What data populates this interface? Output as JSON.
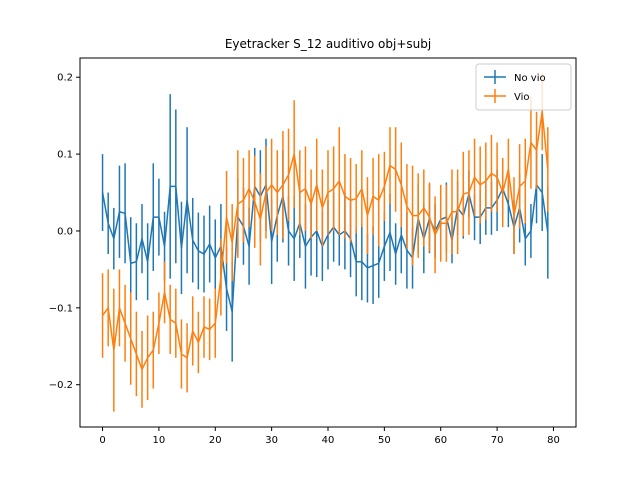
{
  "chart_data": {
    "type": "line",
    "title": "Eyetracker S_12 auditivo obj+subj",
    "xlabel": "",
    "ylabel": "",
    "xlim": [
      -4,
      84
    ],
    "ylim": [
      -0.255,
      0.225
    ],
    "xticks": [
      0,
      10,
      20,
      30,
      40,
      50,
      60,
      70,
      80
    ],
    "yticks": [
      -0.2,
      -0.1,
      0.0,
      0.1,
      0.2
    ],
    "ytick_labels": [
      "−0.2",
      "−0.1",
      "0.0",
      "0.1",
      "0.2"
    ],
    "grid": false,
    "legend_position": "top-right",
    "errorbars": true,
    "series": [
      {
        "name": "No vio",
        "color": "#1f77b4",
        "x": [
          0,
          1,
          2,
          3,
          4,
          5,
          6,
          7,
          8,
          9,
          10,
          11,
          12,
          13,
          14,
          15,
          16,
          17,
          18,
          19,
          20,
          21,
          22,
          23,
          24,
          25,
          26,
          27,
          28,
          29,
          30,
          31,
          32,
          33,
          34,
          35,
          36,
          37,
          38,
          39,
          40,
          41,
          42,
          43,
          44,
          45,
          46,
          47,
          48,
          49,
          50,
          51,
          52,
          53,
          54,
          55,
          56,
          57,
          58,
          59,
          60,
          61,
          62,
          63,
          64,
          65,
          66,
          67,
          68,
          69,
          70,
          71,
          72,
          73,
          74,
          75,
          76,
          77,
          78,
          79
        ],
        "y": [
          0.05,
          0.01,
          -0.01,
          0.025,
          0.023,
          -0.042,
          -0.04,
          -0.01,
          -0.04,
          0.018,
          0.018,
          -0.02,
          0.058,
          0.058,
          -0.022,
          0.04,
          -0.012,
          -0.026,
          -0.03,
          -0.017,
          -0.035,
          -0.02,
          -0.075,
          -0.105,
          0.018,
          0.006,
          -0.02,
          0.058,
          0.045,
          0.06,
          -0.014,
          0.02,
          0.045,
          0.0,
          -0.01,
          0.01,
          -0.02,
          -0.008,
          0.0,
          -0.02,
          -0.005,
          0.005,
          -0.005,
          0.0,
          -0.01,
          -0.04,
          -0.04,
          -0.048,
          -0.045,
          -0.042,
          -0.02,
          -0.002,
          -0.03,
          -0.005,
          -0.025,
          -0.035,
          0.016,
          -0.01,
          0.016,
          0.0,
          0.015,
          0.018,
          -0.012,
          0.03,
          0.02,
          0.048,
          0.018,
          0.018,
          0.03,
          0.03,
          0.04,
          0.055,
          0.035,
          0.005,
          0.03,
          -0.01,
          0.0,
          0.06,
          0.05,
          -0.002
        ],
        "err": [
          0.05,
          0.04,
          0.04,
          0.06,
          0.065,
          0.06,
          0.05,
          0.045,
          0.05,
          0.07,
          0.05,
          0.045,
          0.12,
          0.1,
          0.06,
          0.095,
          0.055,
          0.05,
          0.05,
          0.05,
          0.05,
          0.055,
          0.055,
          0.065,
          0.05,
          0.05,
          0.05,
          0.05,
          0.06,
          0.06,
          0.055,
          0.06,
          0.06,
          0.045,
          0.055,
          0.045,
          0.055,
          0.05,
          0.06,
          0.045,
          0.045,
          0.045,
          0.04,
          0.05,
          0.05,
          0.045,
          0.05,
          0.045,
          0.05,
          0.045,
          0.045,
          0.05,
          0.04,
          0.05,
          0.05,
          0.04,
          0.045,
          0.045,
          0.045,
          0.035,
          0.04,
          0.045,
          0.03,
          0.035,
          0.03,
          0.03,
          0.03,
          0.035,
          0.035,
          0.035,
          0.04,
          0.035,
          0.03,
          0.035,
          0.045,
          0.035,
          0.035,
          0.05,
          0.05,
          0.06
        ]
      },
      {
        "name": "Vio",
        "color": "#ff7f0e",
        "x": [
          0,
          1,
          2,
          3,
          4,
          5,
          6,
          7,
          8,
          9,
          10,
          11,
          12,
          13,
          14,
          15,
          16,
          17,
          18,
          19,
          20,
          21,
          22,
          23,
          24,
          25,
          26,
          27,
          28,
          29,
          30,
          31,
          32,
          33,
          34,
          35,
          36,
          37,
          38,
          39,
          40,
          41,
          42,
          43,
          44,
          45,
          46,
          47,
          48,
          49,
          50,
          51,
          52,
          53,
          54,
          55,
          56,
          57,
          58,
          59,
          60,
          61,
          62,
          63,
          64,
          65,
          66,
          67,
          68,
          69,
          70,
          71,
          72,
          73,
          74,
          75,
          76,
          77,
          78,
          79
        ],
        "y": [
          -0.11,
          -0.1,
          -0.155,
          -0.1,
          -0.12,
          -0.14,
          -0.16,
          -0.18,
          -0.165,
          -0.155,
          -0.12,
          -0.08,
          -0.115,
          -0.12,
          -0.16,
          -0.165,
          -0.13,
          -0.145,
          -0.125,
          -0.128,
          -0.12,
          -0.06,
          0.018,
          -0.015,
          0.035,
          0.04,
          0.055,
          0.038,
          0.015,
          0.05,
          0.06,
          0.05,
          0.06,
          0.073,
          0.1,
          0.05,
          0.055,
          0.035,
          0.06,
          0.03,
          0.05,
          0.055,
          0.065,
          0.045,
          0.04,
          0.042,
          0.055,
          0.02,
          0.045,
          0.04,
          0.058,
          0.085,
          0.08,
          0.06,
          0.032,
          0.02,
          0.02,
          0.03,
          0.018,
          -0.005,
          0.01,
          0.01,
          0.025,
          0.025,
          0.048,
          0.05,
          0.07,
          0.06,
          0.065,
          0.075,
          0.07,
          0.05,
          0.08,
          0.02,
          0.058,
          0.065,
          0.115,
          0.105,
          0.155,
          0.08
        ],
        "err": [
          0.055,
          0.05,
          0.08,
          0.05,
          0.05,
          0.06,
          0.055,
          0.05,
          0.055,
          0.05,
          0.04,
          0.04,
          0.045,
          0.045,
          0.045,
          0.045,
          0.045,
          0.04,
          0.04,
          0.04,
          0.045,
          0.05,
          0.06,
          0.05,
          0.07,
          0.055,
          0.05,
          0.06,
          0.06,
          0.06,
          0.06,
          0.055,
          0.07,
          0.06,
          0.07,
          0.055,
          0.055,
          0.045,
          0.06,
          0.05,
          0.055,
          0.055,
          0.07,
          0.055,
          0.055,
          0.045,
          0.05,
          0.05,
          0.05,
          0.06,
          0.045,
          0.05,
          0.055,
          0.055,
          0.055,
          0.065,
          0.055,
          0.05,
          0.045,
          0.05,
          0.05,
          0.05,
          0.055,
          0.055,
          0.055,
          0.055,
          0.05,
          0.05,
          0.05,
          0.05,
          0.045,
          0.045,
          0.04,
          0.05,
          0.055,
          0.055,
          0.06,
          0.05,
          0.05,
          0.055
        ]
      }
    ]
  }
}
